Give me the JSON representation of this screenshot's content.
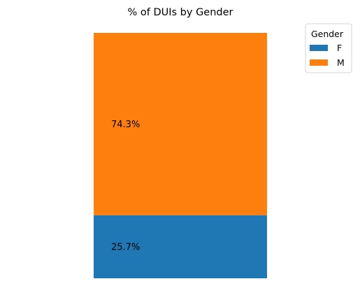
{
  "chart_data": {
    "type": "bar",
    "stacked": true,
    "title": "% of DUIs by Gender",
    "categories": [
      ""
    ],
    "series": [
      {
        "name": "F",
        "values": [
          25.7
        ],
        "label": "25.7%",
        "color": "#1f77b4"
      },
      {
        "name": "M",
        "values": [
          74.3
        ],
        "label": "74.3%",
        "color": "#ff7f0e"
      }
    ],
    "ylim": [
      0,
      100
    ],
    "grid": false,
    "axes_visible": false,
    "legend": {
      "title": "Gender",
      "placement": "top-right, outside plot"
    }
  }
}
